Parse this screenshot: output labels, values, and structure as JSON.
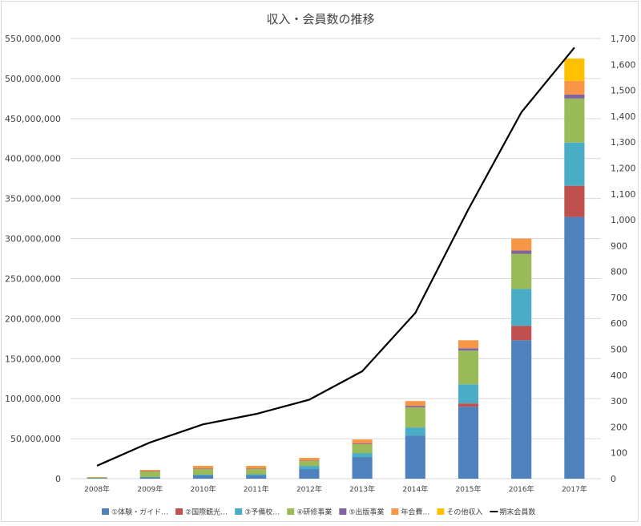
{
  "chart_data": {
    "type": "bar",
    "stacked": true,
    "combo_line_series": "期末会員数",
    "title": "収入・会員数の推移",
    "categories": [
      "2008年",
      "2009年",
      "2010年",
      "2011年",
      "2012年",
      "2013年",
      "2014年",
      "2015年",
      "2016年",
      "2017年"
    ],
    "y_left": {
      "lim": [
        0,
        550000000
      ],
      "ticks": [
        "0",
        "50,000,000",
        "100,000,000",
        "150,000,000",
        "200,000,000",
        "250,000,000",
        "300,000,000",
        "350,000,000",
        "400,000,000",
        "450,000,000",
        "500,000,000",
        "550,000,000"
      ]
    },
    "y_right": {
      "lim": [
        0,
        1700
      ],
      "ticks": [
        "0",
        "100",
        "200",
        "300",
        "400",
        "500",
        "600",
        "700",
        "800",
        "900",
        "1,000",
        "1,100",
        "1,200",
        "1,300",
        "1,400",
        "1,500",
        "1,600",
        "1,700"
      ]
    },
    "grid": true,
    "legend_position": "bottom",
    "series": [
      {
        "name": "①体験・ガイド…",
        "color": "#4f81bd",
        "values": [
          500000,
          1500000,
          4000000,
          4000000,
          12000000,
          27000000,
          54000000,
          90000000,
          173000000,
          327000000
        ]
      },
      {
        "name": "②国際観光…",
        "color": "#c0504d",
        "values": [
          0,
          0,
          0,
          0,
          0,
          0,
          0,
          4000000,
          18000000,
          39000000
        ]
      },
      {
        "name": "③予備校…",
        "color": "#4bacc6",
        "values": [
          0,
          500000,
          1000000,
          1500000,
          4000000,
          5000000,
          10000000,
          24000000,
          46000000,
          54000000
        ]
      },
      {
        "name": "④研修事業",
        "color": "#9bbb59",
        "values": [
          1000000,
          7000000,
          7000000,
          6500000,
          6000000,
          11000000,
          25000000,
          42000000,
          44000000,
          55000000
        ]
      },
      {
        "name": "⑤出版事業",
        "color": "#8064a2",
        "values": [
          0,
          500000,
          500000,
          500000,
          500000,
          1000000,
          2000000,
          3000000,
          4000000,
          5000000
        ]
      },
      {
        "name": "年会費…",
        "color": "#f79646",
        "values": [
          500000,
          1500000,
          3500000,
          3500000,
          3500000,
          5000000,
          6000000,
          10000000,
          15000000,
          17000000
        ]
      },
      {
        "name": "その他収入",
        "color": "#ffc000",
        "values": [
          0,
          0,
          0,
          0,
          0,
          0,
          0,
          0,
          0,
          28000000
        ]
      }
    ],
    "line": {
      "name": "期末会員数",
      "color": "#000000",
      "axis": "right",
      "values": [
        50,
        140,
        210,
        250,
        305,
        415,
        640,
        1040,
        1415,
        1665
      ]
    }
  }
}
